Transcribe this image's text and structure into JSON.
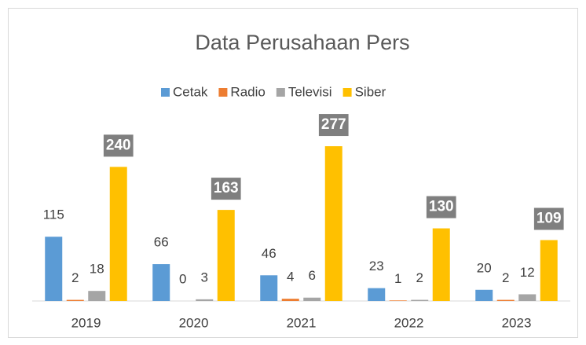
{
  "chart_data": {
    "type": "bar",
    "title": "Data Perusahaan Pers",
    "categories": [
      "2019",
      "2020",
      "2021",
      "2022",
      "2023"
    ],
    "series": [
      {
        "name": "Cetak",
        "color": "#5b9bd5",
        "values": [
          115,
          66,
          46,
          23,
          20
        ]
      },
      {
        "name": "Radio",
        "color": "#ed7d31",
        "values": [
          2,
          0,
          4,
          1,
          2
        ]
      },
      {
        "name": "Televisi",
        "color": "#a5a5a5",
        "values": [
          18,
          3,
          6,
          2,
          12
        ]
      },
      {
        "name": "Siber",
        "color": "#ffc000",
        "values": [
          240,
          163,
          277,
          130,
          109
        ]
      }
    ],
    "ylim": [
      0,
      300
    ],
    "legend": "top",
    "grid": false
  }
}
